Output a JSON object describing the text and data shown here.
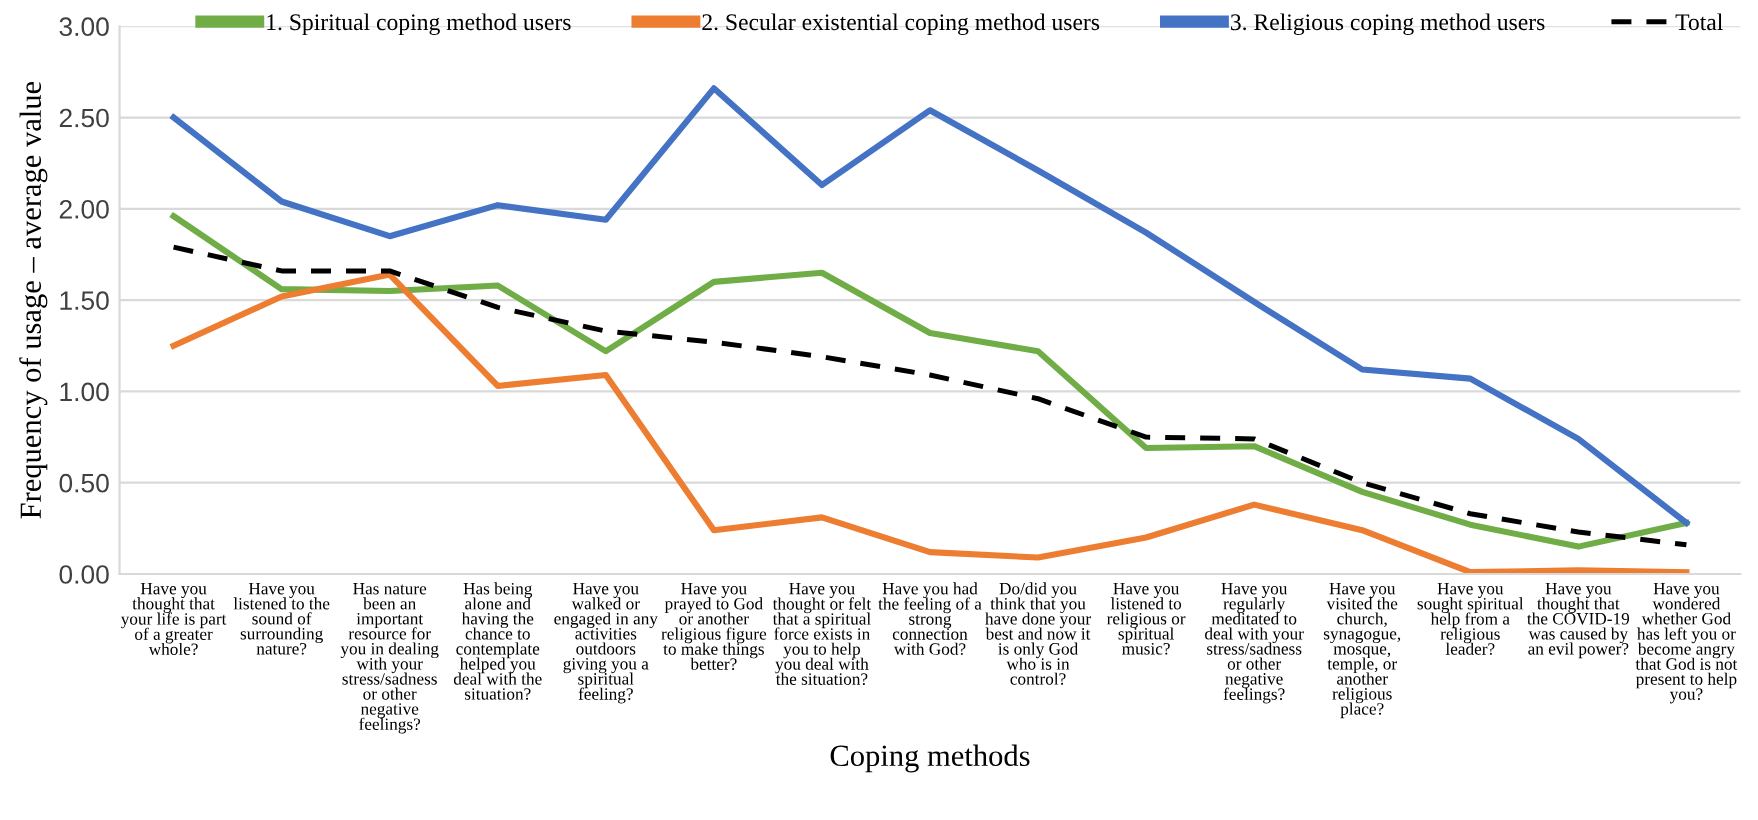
{
  "chart_data": {
    "type": "line",
    "xlabel": "Coping methods",
    "ylabel": "Frequency of usage – average value",
    "categories": [
      "Have you\nthought that\nyour life is part\nof a greater\nwhole?",
      "Have you\nlistened to the\nsound of\nsurrounding\nnature?",
      "Has nature\nbeen an\nimportant\nresource for\nyou in dealing\nwith your\nstress/sadness\nor other\nnegative\nfeelings?",
      "Has being\nalone and\nhaving the\nchance to\ncontemplate\nhelped you\ndeal with the\nsituation?",
      "Have you\nwalked or\nengaged in any\nactivities\noutdoors\ngiving you a\nspiritual\nfeeling?",
      "Have you\nprayed to God\nor another\nreligious figure\nto make things\nbetter?",
      "Have you\nthought or felt\nthat a spiritual\nforce exists in\nyou to help\nyou deal with\nthe situation?",
      "Have you had\nthe feeling of a\nstrong\nconnection\nwith God?",
      "Do/did you\nthink that you\nhave done your\nbest and now it\nis only God\nwho is in\ncontrol?",
      "Have you\nlistened to\nreligious or\nspiritual\nmusic?",
      "Have you\nregularly\nmeditated to\ndeal with your\nstress/sadness\nor other\nnegative\nfeelings?",
      "Have you\nvisited the\nchurch,\nsynagogue,\nmosque,\ntemple, or\nanother\nreligious\nplace?",
      "Have you\nsought spiritual\nhelp from a\nreligious\nleader?",
      "Have you\nthought that\nthe COVID-19\nwas caused by\nan evil power?",
      "Have you\nwondered\nwhether God\nhas left you or\nbecome angry\nthat God is not\npresent to help\nyou?"
    ],
    "series": [
      {
        "name": "1. Spiritual coping method users",
        "color": "#70ad47",
        "values": [
          1.96,
          1.56,
          1.55,
          1.58,
          1.22,
          1.6,
          1.65,
          1.32,
          1.22,
          0.69,
          0.7,
          0.45,
          0.27,
          0.15,
          0.28
        ]
      },
      {
        "name": "2. Secular existential coping method users",
        "color": "#ed7d31",
        "values": [
          1.25,
          1.52,
          1.64,
          1.03,
          1.09,
          0.24,
          0.31,
          0.12,
          0.09,
          0.2,
          0.38,
          0.24,
          0.01,
          0.02,
          0.01
        ]
      },
      {
        "name": "3. Religious coping method users",
        "color": "#4472c4",
        "values": [
          2.5,
          2.04,
          1.85,
          2.02,
          1.94,
          2.66,
          2.13,
          2.54,
          2.21,
          1.87,
          1.49,
          1.12,
          1.07,
          0.74,
          0.28
        ]
      },
      {
        "name": "Total",
        "color": "#000000",
        "line_style": "dashed",
        "values": [
          1.79,
          1.66,
          1.66,
          1.46,
          1.33,
          1.27,
          1.19,
          1.09,
          0.96,
          0.75,
          0.74,
          0.5,
          0.33,
          0.23,
          0.16
        ]
      }
    ],
    "ylim": [
      0,
      3
    ],
    "yticks": [
      {
        "value": 0,
        "label": "0.00"
      },
      {
        "value": 0.5,
        "label": "0.50"
      },
      {
        "value": 1,
        "label": "1.00"
      },
      {
        "value": 1.5,
        "label": "1.50"
      },
      {
        "value": 2,
        "label": "2.00"
      },
      {
        "value": 2.5,
        "label": "2.50"
      },
      {
        "value": 3,
        "label": "3.00"
      }
    ],
    "grid": "y",
    "legend": "top",
    "marker": "none",
    "line_style": "solid"
  }
}
